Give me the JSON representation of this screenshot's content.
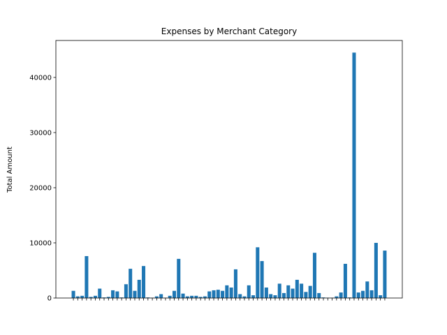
{
  "chart_data": {
    "type": "bar",
    "title": "Expenses by Merchant Category",
    "ylabel": "Total Amount",
    "categories": [
      null,
      null,
      null,
      null,
      null,
      null,
      null,
      null,
      null,
      null,
      null,
      null,
      null,
      null,
      null,
      null,
      null,
      null,
      null,
      null,
      null,
      null,
      null,
      null,
      null,
      null,
      null,
      null,
      null,
      null,
      null,
      null,
      null,
      null,
      null,
      null,
      null,
      null,
      null,
      null,
      null,
      null,
      null,
      null,
      null,
      null,
      null,
      null,
      null,
      null,
      null,
      null,
      null,
      null,
      null,
      null,
      null,
      null,
      null,
      null,
      null,
      null,
      null,
      null,
      null,
      null,
      null,
      null,
      null,
      null,
      null,
      null
    ],
    "values": [
      1300,
      300,
      400,
      7600,
      200,
      400,
      1700,
      100,
      200,
      1400,
      1200,
      100,
      2500,
      5300,
      1300,
      3300,
      5800,
      100,
      50,
      300,
      700,
      50,
      400,
      1300,
      7100,
      800,
      300,
      400,
      400,
      200,
      300,
      1200,
      1400,
      1500,
      1300,
      2300,
      1900,
      5200,
      700,
      300,
      2300,
      500,
      9200,
      6700,
      1900,
      700,
      500,
      2600,
      900,
      2300,
      1700,
      3300,
      2600,
      1100,
      2200,
      8200,
      900,
      100,
      50,
      50,
      300,
      1000,
      6200,
      100,
      44500,
      1000,
      1300,
      3000,
      1400,
      10000,
      500,
      8600
    ],
    "color": "#1f77b4",
    "ylim": [
      0,
      46700
    ],
    "yticks": [
      0,
      10000,
      20000,
      30000,
      40000
    ]
  }
}
